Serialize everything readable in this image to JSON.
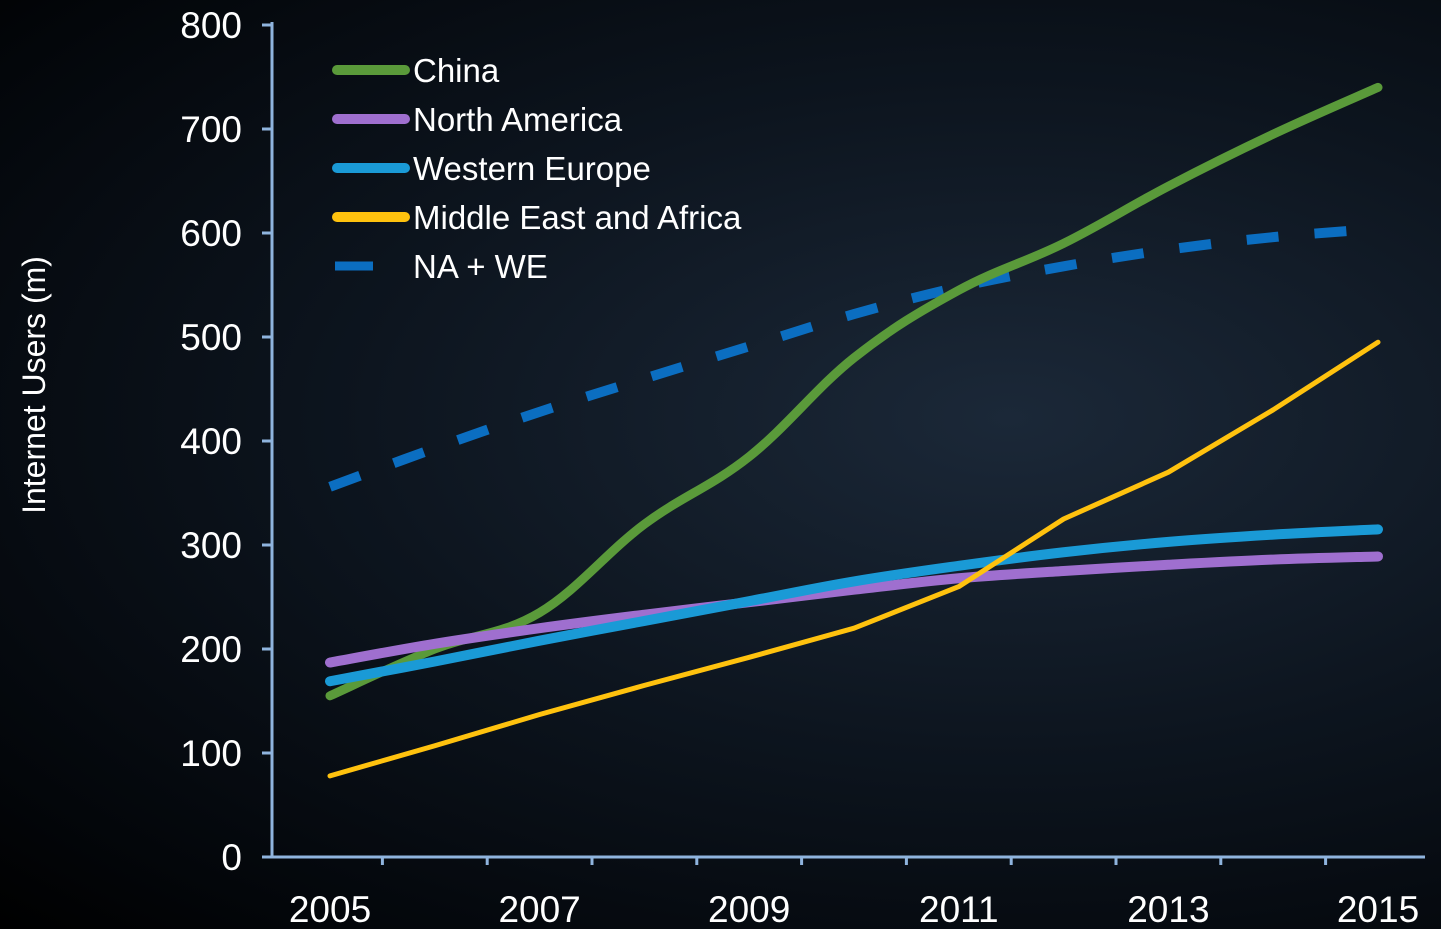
{
  "chart_data": {
    "type": "line",
    "ylabel": "Internet  Users (m)",
    "xlabel": "",
    "ylim": [
      0,
      800
    ],
    "xlim": [
      2005,
      2015
    ],
    "yticks": [
      "0",
      "100",
      "200",
      "300",
      "400",
      "500",
      "600",
      "700",
      "800"
    ],
    "xticks": [
      "2005",
      "2007",
      "2009",
      "2011",
      "2013",
      "2015"
    ],
    "legend_position": "top-left",
    "grid": false,
    "x": [
      2005,
      2006,
      2007,
      2008,
      2009,
      2010,
      2011,
      2012,
      2013,
      2014,
      2015
    ],
    "series": [
      {
        "name": "China",
        "color": "#5a9a3a",
        "style": "solid",
        "values": [
          155,
          200,
          235,
          320,
          385,
          480,
          545,
          590,
          645,
          695,
          740
        ]
      },
      {
        "name": "North America",
        "color": "#9f6fcf",
        "style": "solid",
        "values": [
          187,
          205,
          220,
          233,
          245,
          257,
          268,
          275,
          281,
          286,
          289
        ]
      },
      {
        "name": "Western Europe",
        "color": "#1a9ad6",
        "style": "solid",
        "values": [
          169,
          188,
          208,
          227,
          246,
          265,
          280,
          293,
          303,
          310,
          315
        ]
      },
      {
        "name": "Middle East and Africa",
        "color": "#ffc20e",
        "style": "solid",
        "values": [
          78,
          107,
          137,
          165,
          192,
          220,
          260,
          325,
          370,
          430,
          495
        ]
      },
      {
        "name": "NA + WE",
        "color": "#0b6ec1",
        "style": "dashed",
        "values": [
          356,
          393,
          428,
          460,
          491,
          522,
          548,
          568,
          584,
          596,
          604
        ]
      }
    ]
  }
}
